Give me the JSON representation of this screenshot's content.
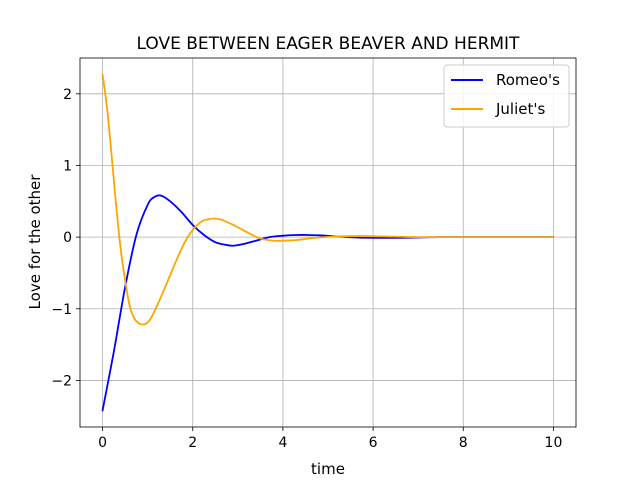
{
  "chart_data": {
    "type": "line",
    "title": "LOVE BETWEEN EAGER BEAVER AND HERMIT",
    "xlabel": "time",
    "ylabel": "Love for the other",
    "xlim": [
      -0.5,
      10.5
    ],
    "ylim": [
      -2.65,
      2.5
    ],
    "xticks": [
      0,
      2,
      4,
      6,
      8,
      10
    ],
    "xtick_labels": [
      "0",
      "2",
      "4",
      "6",
      "8",
      "10"
    ],
    "yticks": [
      -2,
      -1,
      0,
      1,
      2
    ],
    "ytick_labels": [
      "−2",
      "−1",
      "0",
      "1",
      "2"
    ],
    "grid": true,
    "legend_position": "top-right",
    "series": [
      {
        "name": "Romeo's",
        "color": "#0000ff",
        "x": [
          0,
          0.25,
          0.5,
          0.75,
          1.0,
          1.15,
          1.3,
          1.5,
          1.75,
          2.0,
          2.25,
          2.5,
          2.75,
          2.9,
          3.1,
          3.4,
          3.7,
          4.0,
          4.3,
          4.5,
          4.8,
          5.2,
          5.6,
          6.0,
          6.5,
          7.0,
          7.5,
          8.0,
          9.0,
          10.0
        ],
        "y": [
          -2.42,
          -1.6,
          -0.7,
          0.03,
          0.45,
          0.56,
          0.58,
          0.5,
          0.35,
          0.17,
          0.03,
          -0.07,
          -0.11,
          -0.12,
          -0.1,
          -0.05,
          0.0,
          0.02,
          0.03,
          0.03,
          0.025,
          0.01,
          -0.005,
          -0.01,
          -0.01,
          -0.005,
          0.0,
          0.0,
          0.0,
          0.0
        ]
      },
      {
        "name": "Juliet's",
        "color": "#ffa500",
        "x": [
          0,
          0.1,
          0.2,
          0.3,
          0.4,
          0.5,
          0.6,
          0.7,
          0.8,
          0.9,
          1.0,
          1.1,
          1.25,
          1.4,
          1.6,
          1.8,
          2.0,
          2.2,
          2.35,
          2.5,
          2.65,
          2.9,
          3.2,
          3.5,
          3.8,
          4.0,
          4.3,
          4.7,
          5.2,
          5.7,
          6.2,
          7.0,
          8.0,
          9.0,
          10.0
        ],
        "y": [
          2.27,
          1.8,
          1.15,
          0.45,
          -0.15,
          -0.6,
          -0.95,
          -1.13,
          -1.2,
          -1.22,
          -1.19,
          -1.1,
          -0.9,
          -0.68,
          -0.38,
          -0.1,
          0.1,
          0.22,
          0.25,
          0.26,
          0.24,
          0.17,
          0.07,
          -0.02,
          -0.05,
          -0.05,
          -0.04,
          -0.01,
          0.01,
          0.015,
          0.01,
          0.0,
          0.0,
          0.0,
          0.0
        ]
      }
    ]
  }
}
